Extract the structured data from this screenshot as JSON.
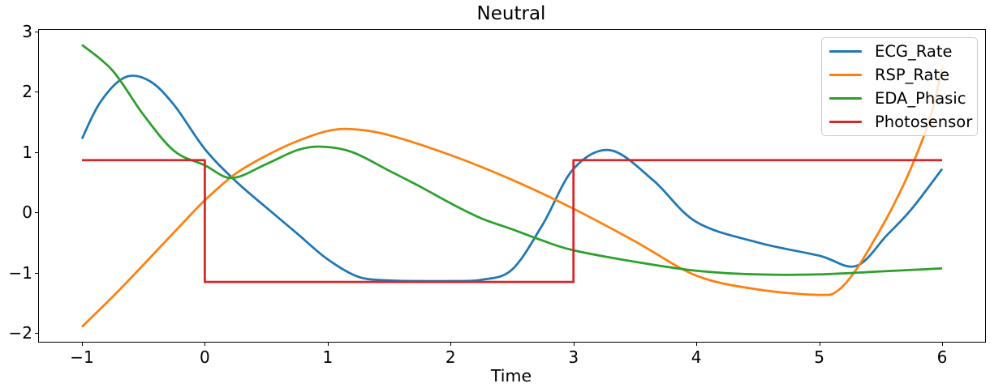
{
  "figure": {
    "title": "Neutral",
    "xlabel": "Time"
  },
  "axes": {
    "x_tick_labels": [
      "−1",
      "0",
      "1",
      "2",
      "3",
      "4",
      "5",
      "6"
    ],
    "y_tick_labels": [
      "−2",
      "−1",
      "0",
      "1",
      "2",
      "3"
    ],
    "spine_color": "#000000",
    "background": "#ffffff"
  },
  "legend": {
    "position": "upper right",
    "border_color": "#cccccc",
    "entries": [
      {
        "label": "ECG_Rate",
        "color": "#1f77b4"
      },
      {
        "label": "RSP_Rate",
        "color": "#ff7f0e"
      },
      {
        "label": "EDA_Phasic",
        "color": "#2ca02c"
      },
      {
        "label": "Photosensor",
        "color": "#d62728"
      }
    ]
  },
  "chart_data": {
    "type": "line",
    "title": "Neutral",
    "xlabel": "Time",
    "ylabel": "",
    "grid": false,
    "legend_position": "upper right",
    "xlim": [
      -1.35,
      6.35
    ],
    "ylim": [
      -2.148,
      3.026
    ],
    "x_ticks": [
      -1,
      0,
      1,
      2,
      3,
      4,
      5,
      6
    ],
    "y_ticks": [
      -2,
      -1,
      0,
      1,
      2,
      3
    ],
    "series": [
      {
        "name": "ECG_Rate",
        "color": "#1f77b4",
        "interp": "smooth",
        "points": [
          [
            -1,
            1.22
          ],
          [
            -0.85,
            1.83
          ],
          [
            -0.65,
            2.24
          ],
          [
            -0.45,
            2.18
          ],
          [
            -0.25,
            1.78
          ],
          [
            0,
            1.05
          ],
          [
            0.25,
            0.52
          ],
          [
            0.5,
            0.08
          ],
          [
            0.75,
            -0.35
          ],
          [
            1,
            -0.78
          ],
          [
            1.25,
            -1.07
          ],
          [
            1.5,
            -1.13
          ],
          [
            1.75,
            -1.14
          ],
          [
            2,
            -1.14
          ],
          [
            2.25,
            -1.12
          ],
          [
            2.5,
            -0.95
          ],
          [
            2.75,
            -0.2
          ],
          [
            3,
            0.72
          ],
          [
            3.3,
            1.03
          ],
          [
            3.65,
            0.53
          ],
          [
            4,
            -0.16
          ],
          [
            4.5,
            -0.5
          ],
          [
            5,
            -0.72
          ],
          [
            5.3,
            -0.89
          ],
          [
            5.55,
            -0.38
          ],
          [
            5.75,
            0.05
          ],
          [
            6,
            0.72
          ]
        ]
      },
      {
        "name": "RSP_Rate",
        "color": "#ff7f0e",
        "interp": "smooth",
        "points": [
          [
            -1,
            -1.9
          ],
          [
            -0.75,
            -1.4
          ],
          [
            -0.5,
            -0.87
          ],
          [
            -0.25,
            -0.33
          ],
          [
            0,
            0.2
          ],
          [
            0.25,
            0.64
          ],
          [
            0.5,
            0.94
          ],
          [
            0.75,
            1.18
          ],
          [
            1,
            1.35
          ],
          [
            1.2,
            1.38
          ],
          [
            1.5,
            1.28
          ],
          [
            2,
            0.95
          ],
          [
            2.5,
            0.54
          ],
          [
            3,
            0.06
          ],
          [
            3.5,
            -0.48
          ],
          [
            4,
            -1.05
          ],
          [
            4.5,
            -1.28
          ],
          [
            5,
            -1.37
          ],
          [
            5.15,
            -1.3
          ],
          [
            5.3,
            -0.95
          ],
          [
            5.45,
            -0.45
          ],
          [
            5.6,
            0.1
          ],
          [
            5.75,
            0.75
          ],
          [
            5.9,
            1.55
          ],
          [
            6,
            2.4
          ]
        ]
      },
      {
        "name": "EDA_Phasic",
        "color": "#2ca02c",
        "interp": "smooth",
        "points": [
          [
            -1,
            2.78
          ],
          [
            -0.75,
            2.35
          ],
          [
            -0.5,
            1.62
          ],
          [
            -0.25,
            1.02
          ],
          [
            0,
            0.78
          ],
          [
            0.22,
            0.57
          ],
          [
            0.5,
            0.8
          ],
          [
            0.75,
            1.03
          ],
          [
            0.95,
            1.09
          ],
          [
            1.2,
            1.0
          ],
          [
            1.5,
            0.69
          ],
          [
            1.75,
            0.43
          ],
          [
            2,
            0.15
          ],
          [
            2.25,
            -0.1
          ],
          [
            2.5,
            -0.28
          ],
          [
            2.75,
            -0.47
          ],
          [
            3,
            -0.63
          ],
          [
            3.5,
            -0.82
          ],
          [
            4,
            -0.97
          ],
          [
            4.5,
            -1.03
          ],
          [
            5,
            -1.03
          ],
          [
            5.5,
            -0.98
          ],
          [
            6,
            -0.93
          ]
        ]
      },
      {
        "name": "Photosensor",
        "color": "#d62728",
        "interp": "linear",
        "points": [
          [
            -1,
            0.866
          ],
          [
            0,
            0.866
          ],
          [
            0,
            -1.155
          ],
          [
            3,
            -1.155
          ],
          [
            3,
            0.866
          ],
          [
            6,
            0.866
          ]
        ]
      }
    ]
  }
}
